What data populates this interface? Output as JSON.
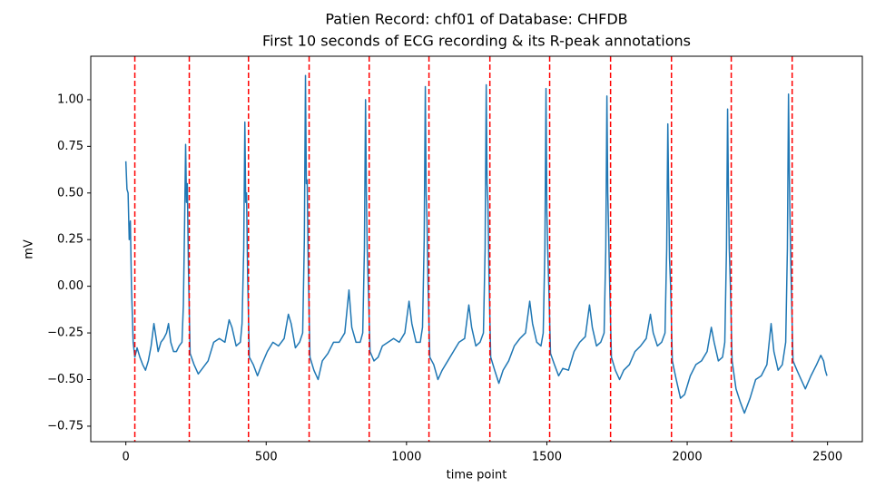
{
  "chart_data": {
    "type": "line",
    "title": "Patien Record: chf01 of Database: CHFDB",
    "subtitle": "First 10 seconds of ECG recording & its R-peak annotations",
    "xlabel": "time point",
    "ylabel": "mV",
    "color": "#1f77b4",
    "x": [
      0,
      4,
      8,
      12,
      16,
      20,
      26,
      32,
      40,
      50,
      60,
      70,
      80,
      90,
      100,
      108,
      115,
      125,
      135,
      145,
      152,
      160,
      170,
      180,
      190,
      200,
      205,
      209,
      213,
      216,
      219,
      223,
      229,
      243,
      258,
      273,
      293,
      313,
      333,
      353,
      368,
      378,
      393,
      408,
      414,
      420,
      424,
      427,
      430,
      434,
      440,
      454,
      469,
      484,
      504,
      524,
      544,
      564,
      579,
      589,
      604,
      619,
      630,
      636,
      640,
      643,
      646,
      650,
      656,
      670,
      685,
      700,
      720,
      740,
      760,
      780,
      795,
      805,
      820,
      835,
      844,
      850,
      854,
      857,
      860,
      864,
      870,
      884,
      899,
      914,
      934,
      954,
      974,
      994,
      1009,
      1019,
      1034,
      1049,
      1057,
      1063,
      1067,
      1070,
      1073,
      1077,
      1083,
      1097,
      1112,
      1127,
      1147,
      1167,
      1187,
      1207,
      1222,
      1232,
      1247,
      1262,
      1274,
      1280,
      1284,
      1287,
      1290,
      1294,
      1300,
      1314,
      1329,
      1344,
      1364,
      1384,
      1404,
      1424,
      1439,
      1449,
      1464,
      1479,
      1487,
      1493,
      1497,
      1500,
      1503,
      1507,
      1513,
      1527,
      1542,
      1557,
      1577,
      1597,
      1617,
      1637,
      1652,
      1662,
      1677,
      1692,
      1704,
      1710,
      1714,
      1717,
      1720,
      1724,
      1730,
      1744,
      1759,
      1774,
      1794,
      1814,
      1834,
      1854,
      1869,
      1879,
      1894,
      1909,
      1921,
      1927,
      1931,
      1934,
      1937,
      1941,
      1947,
      1961,
      1976,
      1991,
      2011,
      2031,
      2051,
      2071,
      2086,
      2096,
      2111,
      2126,
      2134,
      2140,
      2144,
      2147,
      2150,
      2154,
      2160,
      2174,
      2189,
      2204,
      2224,
      2244,
      2264,
      2284,
      2299,
      2309,
      2324,
      2339,
      2351,
      2357,
      2361,
      2364,
      2367,
      2371,
      2377,
      2391,
      2406,
      2421,
      2441,
      2461,
      2476,
      2486,
      2492,
      2498
    ],
    "values": [
      0.67,
      0.52,
      0.5,
      0.25,
      0.35,
      0.0,
      -0.3,
      -0.38,
      -0.33,
      -0.38,
      -0.42,
      -0.45,
      -0.4,
      -0.32,
      -0.2,
      -0.28,
      -0.35,
      -0.3,
      -0.28,
      -0.25,
      -0.2,
      -0.3,
      -0.35,
      -0.35,
      -0.32,
      -0.3,
      -0.1,
      0.3,
      0.76,
      0.45,
      0.55,
      0.1,
      -0.36,
      -0.42,
      -0.47,
      -0.44,
      -0.4,
      -0.3,
      -0.28,
      -0.3,
      -0.18,
      -0.22,
      -0.32,
      -0.3,
      -0.2,
      0.2,
      0.88,
      0.45,
      0.5,
      0.05,
      -0.38,
      -0.42,
      -0.48,
      -0.42,
      -0.35,
      -0.3,
      -0.32,
      -0.28,
      -0.15,
      -0.2,
      -0.33,
      -0.3,
      -0.25,
      0.25,
      1.13,
      0.55,
      0.57,
      0.1,
      -0.38,
      -0.45,
      -0.5,
      -0.4,
      -0.36,
      -0.3,
      -0.3,
      -0.25,
      -0.02,
      -0.22,
      -0.3,
      -0.3,
      -0.25,
      0.2,
      1.0,
      0.5,
      0.2,
      0.0,
      -0.35,
      -0.4,
      -0.38,
      -0.32,
      -0.3,
      -0.28,
      -0.3,
      -0.25,
      -0.08,
      -0.2,
      -0.3,
      -0.3,
      -0.22,
      0.25,
      1.07,
      0.5,
      0.35,
      0.0,
      -0.38,
      -0.42,
      -0.5,
      -0.45,
      -0.4,
      -0.35,
      -0.3,
      -0.28,
      -0.1,
      -0.22,
      -0.32,
      -0.3,
      -0.25,
      0.2,
      1.08,
      0.55,
      0.45,
      0.05,
      -0.38,
      -0.45,
      -0.52,
      -0.45,
      -0.4,
      -0.32,
      -0.28,
      -0.25,
      -0.08,
      -0.2,
      -0.3,
      -0.32,
      -0.25,
      0.2,
      1.06,
      0.4,
      0.2,
      0.0,
      -0.36,
      -0.42,
      -0.48,
      -0.44,
      -0.45,
      -0.35,
      -0.3,
      -0.27,
      -0.1,
      -0.22,
      -0.32,
      -0.3,
      -0.25,
      0.2,
      1.02,
      0.5,
      0.3,
      0.0,
      -0.38,
      -0.45,
      -0.5,
      -0.45,
      -0.42,
      -0.35,
      -0.32,
      -0.28,
      -0.15,
      -0.25,
      -0.32,
      -0.3,
      -0.25,
      0.2,
      0.87,
      0.5,
      0.15,
      0.0,
      -0.4,
      -0.5,
      -0.6,
      -0.58,
      -0.48,
      -0.42,
      -0.4,
      -0.35,
      -0.22,
      -0.3,
      -0.4,
      -0.38,
      -0.3,
      0.2,
      0.95,
      0.5,
      0.2,
      0.0,
      -0.4,
      -0.55,
      -0.62,
      -0.68,
      -0.6,
      -0.5,
      -0.48,
      -0.42,
      -0.2,
      -0.35,
      -0.45,
      -0.42,
      -0.3,
      0.2,
      1.03,
      0.6,
      0.3,
      0.0,
      -0.4,
      -0.45,
      -0.5,
      -0.55,
      -0.48,
      -0.42,
      -0.37,
      -0.4,
      -0.45,
      -0.48
    ],
    "r_peaks": [
      32,
      226,
      437,
      653,
      867,
      1080,
      1297,
      1510,
      1727,
      1944,
      2157,
      2374
    ],
    "r_peak_color": "#ff0000",
    "xlim": [
      -125,
      2624
    ],
    "ylim": [
      -0.833,
      1.233
    ],
    "xticks": [
      0,
      500,
      1000,
      1500,
      2000,
      2500
    ],
    "yticks": [
      {
        "value": -0.75,
        "label": "−0.75"
      },
      {
        "value": -0.5,
        "label": "−0.50"
      },
      {
        "value": -0.25,
        "label": "−0.25"
      },
      {
        "value": 0,
        "label": "0.00"
      },
      {
        "value": 0.25,
        "label": "0.25"
      },
      {
        "value": 0.5,
        "label": "0.50"
      },
      {
        "value": 0.75,
        "label": "0.75"
      },
      {
        "value": 1,
        "label": "1.00"
      }
    ],
    "grid": false
  }
}
